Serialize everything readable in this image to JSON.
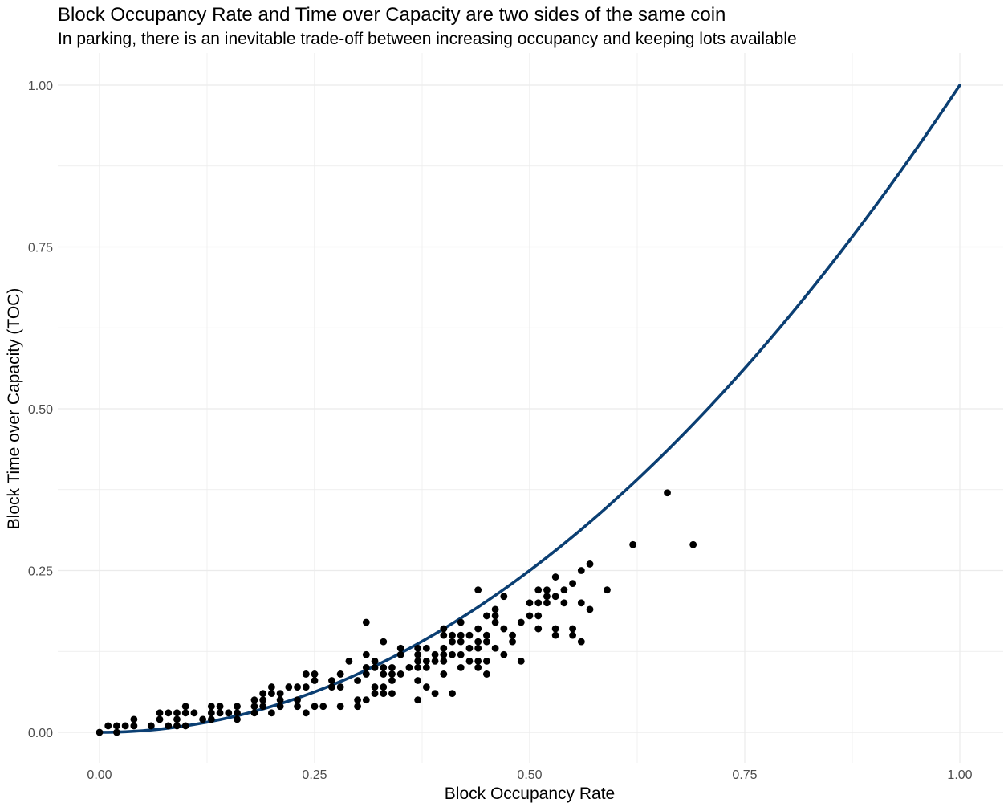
{
  "chart_data": {
    "type": "scatter",
    "title": "Block Occupancy Rate and Time over Capacity are two sides of the same coin",
    "subtitle": "In parking, there is an inevitable trade-off between increasing occupancy and keeping lots available",
    "xlabel": "Block Occupancy Rate",
    "ylabel": "Block Time over Capacity (TOC)",
    "xlim": [
      0,
      1
    ],
    "ylim": [
      0,
      1
    ],
    "x_ticks": [
      0,
      0.25,
      0.5,
      0.75,
      1
    ],
    "x_tick_labels": [
      "0.00",
      "0.25",
      "0.50",
      "0.75",
      "1.00"
    ],
    "y_ticks": [
      0,
      0.25,
      0.5,
      0.75,
      1
    ],
    "y_tick_labels": [
      "0.00",
      "0.25",
      "0.50",
      "0.75",
      "1.00"
    ],
    "grid": true,
    "legend": "none",
    "colors": {
      "points": "#000000",
      "curve": "#0b3f73",
      "grid": "#ebebeb"
    },
    "fit_curve": {
      "type": "line",
      "formula": "y = x^2",
      "x_range": [
        0,
        1
      ]
    },
    "points": [
      [
        0.0,
        0.0
      ],
      [
        0.01,
        0.01
      ],
      [
        0.02,
        0.0
      ],
      [
        0.02,
        0.01
      ],
      [
        0.03,
        0.01
      ],
      [
        0.04,
        0.01
      ],
      [
        0.04,
        0.02
      ],
      [
        0.06,
        0.01
      ],
      [
        0.07,
        0.02
      ],
      [
        0.07,
        0.03
      ],
      [
        0.08,
        0.01
      ],
      [
        0.08,
        0.03
      ],
      [
        0.09,
        0.01
      ],
      [
        0.09,
        0.02
      ],
      [
        0.09,
        0.03
      ],
      [
        0.1,
        0.01
      ],
      [
        0.1,
        0.03
      ],
      [
        0.1,
        0.04
      ],
      [
        0.11,
        0.03
      ],
      [
        0.12,
        0.02
      ],
      [
        0.13,
        0.02
      ],
      [
        0.13,
        0.03
      ],
      [
        0.13,
        0.04
      ],
      [
        0.14,
        0.03
      ],
      [
        0.14,
        0.04
      ],
      [
        0.15,
        0.03
      ],
      [
        0.16,
        0.02
      ],
      [
        0.16,
        0.03
      ],
      [
        0.16,
        0.04
      ],
      [
        0.18,
        0.03
      ],
      [
        0.18,
        0.04
      ],
      [
        0.18,
        0.05
      ],
      [
        0.19,
        0.04
      ],
      [
        0.19,
        0.05
      ],
      [
        0.19,
        0.06
      ],
      [
        0.2,
        0.03
      ],
      [
        0.2,
        0.06
      ],
      [
        0.2,
        0.07
      ],
      [
        0.21,
        0.04
      ],
      [
        0.21,
        0.05
      ],
      [
        0.21,
        0.06
      ],
      [
        0.22,
        0.07
      ],
      [
        0.23,
        0.04
      ],
      [
        0.23,
        0.05
      ],
      [
        0.23,
        0.07
      ],
      [
        0.24,
        0.03
      ],
      [
        0.24,
        0.07
      ],
      [
        0.24,
        0.09
      ],
      [
        0.25,
        0.04
      ],
      [
        0.25,
        0.08
      ],
      [
        0.25,
        0.09
      ],
      [
        0.26,
        0.04
      ],
      [
        0.27,
        0.07
      ],
      [
        0.27,
        0.08
      ],
      [
        0.28,
        0.04
      ],
      [
        0.28,
        0.07
      ],
      [
        0.28,
        0.09
      ],
      [
        0.29,
        0.11
      ],
      [
        0.3,
        0.04
      ],
      [
        0.3,
        0.05
      ],
      [
        0.3,
        0.08
      ],
      [
        0.31,
        0.05
      ],
      [
        0.31,
        0.09
      ],
      [
        0.31,
        0.1
      ],
      [
        0.31,
        0.12
      ],
      [
        0.31,
        0.17
      ],
      [
        0.32,
        0.06
      ],
      [
        0.32,
        0.07
      ],
      [
        0.32,
        0.1
      ],
      [
        0.32,
        0.11
      ],
      [
        0.33,
        0.06
      ],
      [
        0.33,
        0.07
      ],
      [
        0.33,
        0.09
      ],
      [
        0.33,
        0.1
      ],
      [
        0.33,
        0.14
      ],
      [
        0.34,
        0.06
      ],
      [
        0.34,
        0.08
      ],
      [
        0.34,
        0.09
      ],
      [
        0.34,
        0.1
      ],
      [
        0.35,
        0.09
      ],
      [
        0.35,
        0.12
      ],
      [
        0.35,
        0.13
      ],
      [
        0.36,
        0.1
      ],
      [
        0.37,
        0.05
      ],
      [
        0.37,
        0.08
      ],
      [
        0.37,
        0.1
      ],
      [
        0.37,
        0.11
      ],
      [
        0.37,
        0.12
      ],
      [
        0.37,
        0.13
      ],
      [
        0.38,
        0.07
      ],
      [
        0.38,
        0.1
      ],
      [
        0.38,
        0.11
      ],
      [
        0.38,
        0.13
      ],
      [
        0.39,
        0.06
      ],
      [
        0.39,
        0.11
      ],
      [
        0.39,
        0.12
      ],
      [
        0.4,
        0.09
      ],
      [
        0.4,
        0.11
      ],
      [
        0.4,
        0.12
      ],
      [
        0.4,
        0.13
      ],
      [
        0.4,
        0.15
      ],
      [
        0.4,
        0.16
      ],
      [
        0.41,
        0.06
      ],
      [
        0.41,
        0.12
      ],
      [
        0.41,
        0.14
      ],
      [
        0.41,
        0.15
      ],
      [
        0.42,
        0.1
      ],
      [
        0.42,
        0.12
      ],
      [
        0.42,
        0.14
      ],
      [
        0.42,
        0.15
      ],
      [
        0.42,
        0.17
      ],
      [
        0.43,
        0.11
      ],
      [
        0.43,
        0.13
      ],
      [
        0.43,
        0.15
      ],
      [
        0.44,
        0.1
      ],
      [
        0.44,
        0.11
      ],
      [
        0.44,
        0.13
      ],
      [
        0.44,
        0.14
      ],
      [
        0.44,
        0.16
      ],
      [
        0.44,
        0.22
      ],
      [
        0.45,
        0.09
      ],
      [
        0.45,
        0.11
      ],
      [
        0.45,
        0.14
      ],
      [
        0.45,
        0.15
      ],
      [
        0.45,
        0.18
      ],
      [
        0.46,
        0.13
      ],
      [
        0.46,
        0.17
      ],
      [
        0.46,
        0.18
      ],
      [
        0.46,
        0.19
      ],
      [
        0.47,
        0.12
      ],
      [
        0.47,
        0.16
      ],
      [
        0.47,
        0.21
      ],
      [
        0.48,
        0.14
      ],
      [
        0.48,
        0.15
      ],
      [
        0.49,
        0.11
      ],
      [
        0.49,
        0.17
      ],
      [
        0.5,
        0.18
      ],
      [
        0.5,
        0.2
      ],
      [
        0.51,
        0.16
      ],
      [
        0.51,
        0.18
      ],
      [
        0.51,
        0.2
      ],
      [
        0.51,
        0.22
      ],
      [
        0.52,
        0.2
      ],
      [
        0.52,
        0.21
      ],
      [
        0.52,
        0.22
      ],
      [
        0.53,
        0.15
      ],
      [
        0.53,
        0.16
      ],
      [
        0.53,
        0.21
      ],
      [
        0.53,
        0.24
      ],
      [
        0.54,
        0.2
      ],
      [
        0.54,
        0.22
      ],
      [
        0.55,
        0.15
      ],
      [
        0.55,
        0.16
      ],
      [
        0.55,
        0.23
      ],
      [
        0.56,
        0.14
      ],
      [
        0.56,
        0.2
      ],
      [
        0.56,
        0.25
      ],
      [
        0.57,
        0.19
      ],
      [
        0.57,
        0.26
      ],
      [
        0.59,
        0.22
      ],
      [
        0.62,
        0.29
      ],
      [
        0.66,
        0.37
      ],
      [
        0.69,
        0.29
      ]
    ]
  }
}
